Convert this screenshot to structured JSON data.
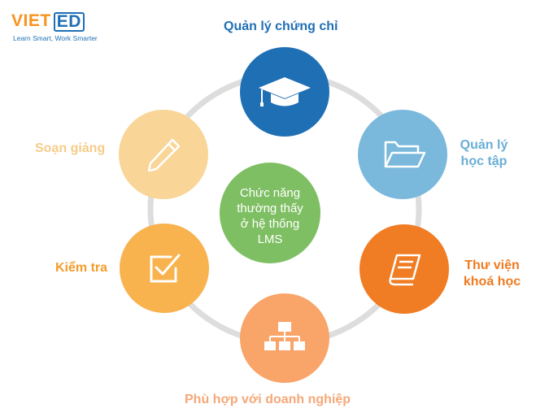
{
  "logo": {
    "word": "VIET",
    "boxed": "ED",
    "tagline": "Learn Smart, Work Smarter"
  },
  "center": {
    "lines": [
      "Chức năng",
      "thường thấy",
      "ở hệ thống",
      "LMS"
    ]
  },
  "nodes": {
    "certificate": {
      "label": "Quản lý chứng chỉ",
      "color": "#1f6fb5",
      "icon": "graduation-cap-icon"
    },
    "learning": {
      "label": "Quản lý học tập",
      "color": "#7ab8dc",
      "icon": "folder-icon"
    },
    "library": {
      "label": "Thư viện khoá học",
      "color": "#f07c23",
      "icon": "book-icon"
    },
    "enterprise": {
      "label": "Phù hợp với doanh nghiệp",
      "color": "#f9a468",
      "icon": "hierarchy-icon"
    },
    "exam": {
      "label": "Kiểm tra",
      "color": "#f8b24e",
      "icon": "checkbox-icon"
    },
    "teaching": {
      "label": "Soạn giảng",
      "color": "#f9d597",
      "icon": "pencil-icon"
    }
  },
  "colors": {
    "ring": "#dddddd",
    "center": "#7fbf63",
    "brand_blue": "#1f6fb5",
    "brand_orange": "#f7931e"
  }
}
